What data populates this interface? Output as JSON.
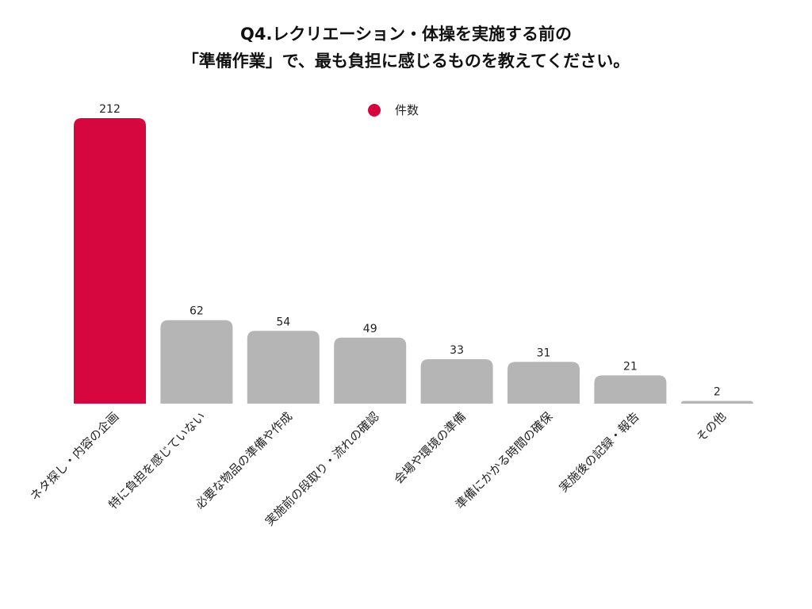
{
  "chart_data": {
    "type": "bar",
    "title": [
      "Q4.レクリエーション・体操を実施する前の",
      "「準備作業」で、最も負担に感じるものを教えてください。"
    ],
    "categories": [
      "ネタ探し・内容の企画",
      "特に負担を感じていない",
      "必要な物品の準備や作成",
      "実施前の段取り・流れの確認",
      "会場や環境の準備",
      "準備にかかる時間の確保",
      "実施後の記録・報告",
      "その他"
    ],
    "series": [
      {
        "name": "件数",
        "values": [
          212,
          62,
          54,
          49,
          33,
          31,
          21,
          2
        ]
      }
    ],
    "colors": {
      "highlight": "#D6063F",
      "default": "#B5B5B5"
    },
    "highlight_index": 0,
    "legend_position": "top-center",
    "grid": false,
    "xlabel": "",
    "ylabel": "",
    "ylim": [
      0,
      212
    ]
  }
}
